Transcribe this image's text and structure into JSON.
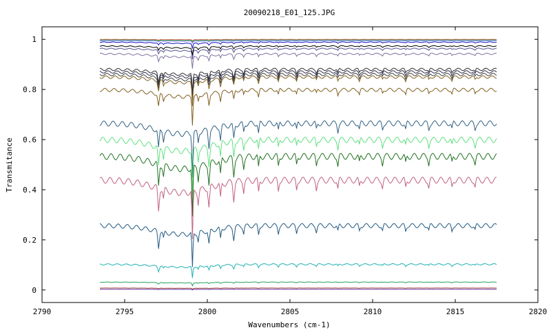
{
  "chart_data": {
    "type": "line",
    "title": "20090218_E01_125.JPG",
    "xlabel": "Wavenumbers (cm-1)",
    "ylabel": "Transmitance",
    "xlim": [
      2790,
      2820
    ],
    "ylim": [
      -0.05,
      1.05
    ],
    "xticks": [
      2790,
      2795,
      2800,
      2805,
      2810,
      2815,
      2820
    ],
    "xtick_labels": [
      "2790",
      "2795",
      "2800",
      "2805",
      "2810",
      "2815",
      "2820"
    ],
    "yticks": [
      0,
      0.2,
      0.4,
      0.6,
      0.8,
      1
    ],
    "ytick_labels": [
      "0",
      "0.2",
      "0.4",
      "0.6",
      "0.8",
      "1"
    ],
    "grid": false,
    "legend": "none",
    "x_range_data": [
      2793.5,
      2817.5
    ],
    "series": [
      {
        "color": "#e05050",
        "baseline": 1.0,
        "depth": 0.005
      },
      {
        "color": "#30a030",
        "baseline": 0.998,
        "depth": 0.006
      },
      {
        "color": "#8080ff",
        "baseline": 0.995,
        "depth": 0.008
      },
      {
        "color": "#1010c0",
        "baseline": 0.99,
        "depth": 0.02
      },
      {
        "color": "#000000",
        "baseline": 0.975,
        "depth": 0.03
      },
      {
        "color": "#505090",
        "baseline": 0.965,
        "depth": 0.035
      },
      {
        "color": "#8070a0",
        "baseline": 0.945,
        "depth": 0.05
      },
      {
        "color": "#303030",
        "baseline": 0.885,
        "depth": 0.08
      },
      {
        "color": "#303050",
        "baseline": 0.875,
        "depth": 0.08
      },
      {
        "color": "#404040",
        "baseline": 0.865,
        "depth": 0.085
      },
      {
        "color": "#806020",
        "baseline": 0.855,
        "depth": 0.09
      },
      {
        "color": "#806020",
        "baseline": 0.805,
        "depth": 0.11
      },
      {
        "color": "#306080",
        "baseline": 0.675,
        "depth": 0.17
      },
      {
        "color": "#60e080",
        "baseline": 0.61,
        "depth": 0.18
      },
      {
        "color": "#207020",
        "baseline": 0.545,
        "depth": 0.2
      },
      {
        "color": "#c06080",
        "baseline": 0.45,
        "depth": 0.2
      },
      {
        "color": "#205880",
        "baseline": 0.265,
        "depth": 0.14
      },
      {
        "color": "#20b0b0",
        "baseline": 0.105,
        "depth": 0.045
      },
      {
        "color": "#20a060",
        "baseline": 0.032,
        "depth": 0.012
      },
      {
        "color": "#a04040",
        "baseline": 0.008,
        "depth": 0.004
      },
      {
        "color": "#6030a0",
        "baseline": 0.003,
        "depth": 0.002
      }
    ]
  }
}
